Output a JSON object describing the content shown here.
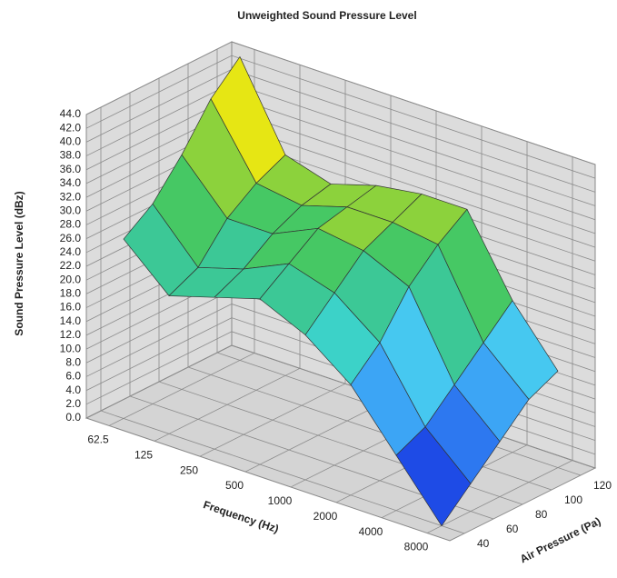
{
  "chart_data": {
    "type": "surface",
    "title": "Unweighted Sound Pressure Level",
    "xlabel": "Frequency (Hz)",
    "ylabel": "Air Pressure (Pa)",
    "zlabel": "Sound Pressure Level (dBz)",
    "categories": [
      "62.5",
      "125",
      "250",
      "500",
      "1000",
      "2000",
      "4000",
      "8000"
    ],
    "pressures": [
      40,
      60,
      80,
      100,
      120
    ],
    "z": [
      [
        26,
        20,
        22,
        24,
        21,
        16,
        8,
        0
      ],
      [
        29,
        22,
        24,
        27,
        25,
        20,
        10,
        4
      ],
      [
        34,
        27,
        27,
        30,
        29,
        26,
        14,
        8
      ],
      [
        40,
        30,
        29,
        31,
        31,
        30,
        18,
        12
      ],
      [
        44,
        32,
        30,
        32,
        33,
        33,
        22,
        14
      ]
    ],
    "zlim": [
      0,
      44
    ],
    "zticks": [
      {
        "value": 0,
        "label": "0.0"
      },
      {
        "value": 2,
        "label": "2.0"
      },
      {
        "value": 4,
        "label": "4.0"
      },
      {
        "value": 6,
        "label": "6.0"
      },
      {
        "value": 8,
        "label": "8.0"
      },
      {
        "value": 10,
        "label": "10.0"
      },
      {
        "value": 12,
        "label": "12.0"
      },
      {
        "value": 14,
        "label": "14.0"
      },
      {
        "value": 16,
        "label": "16.0"
      },
      {
        "value": 18,
        "label": "18.0"
      },
      {
        "value": 20,
        "label": "20.0"
      },
      {
        "value": 22,
        "label": "22.0"
      },
      {
        "value": 24,
        "label": "24.0"
      },
      {
        "value": 26,
        "label": "26.0"
      },
      {
        "value": 28,
        "label": "28.0"
      },
      {
        "value": 30,
        "label": "30.0"
      },
      {
        "value": 32,
        "label": "32.0"
      },
      {
        "value": 34,
        "label": "34.0"
      },
      {
        "value": 36,
        "label": "36.0"
      },
      {
        "value": 38,
        "label": "38.0"
      },
      {
        "value": 40,
        "label": "40.0"
      },
      {
        "value": 42,
        "label": "42.0"
      },
      {
        "value": 44,
        "label": "44.0"
      }
    ],
    "colors": [
      "#0a14c8",
      "#1e4be6",
      "#2d78f0",
      "#3ca5f5",
      "#46c8f0",
      "#3cd2c8",
      "#3cc896",
      "#46c864",
      "#8cd23c",
      "#e6e614",
      "#f0b414",
      "#f08c14"
    ],
    "grid": true
  }
}
